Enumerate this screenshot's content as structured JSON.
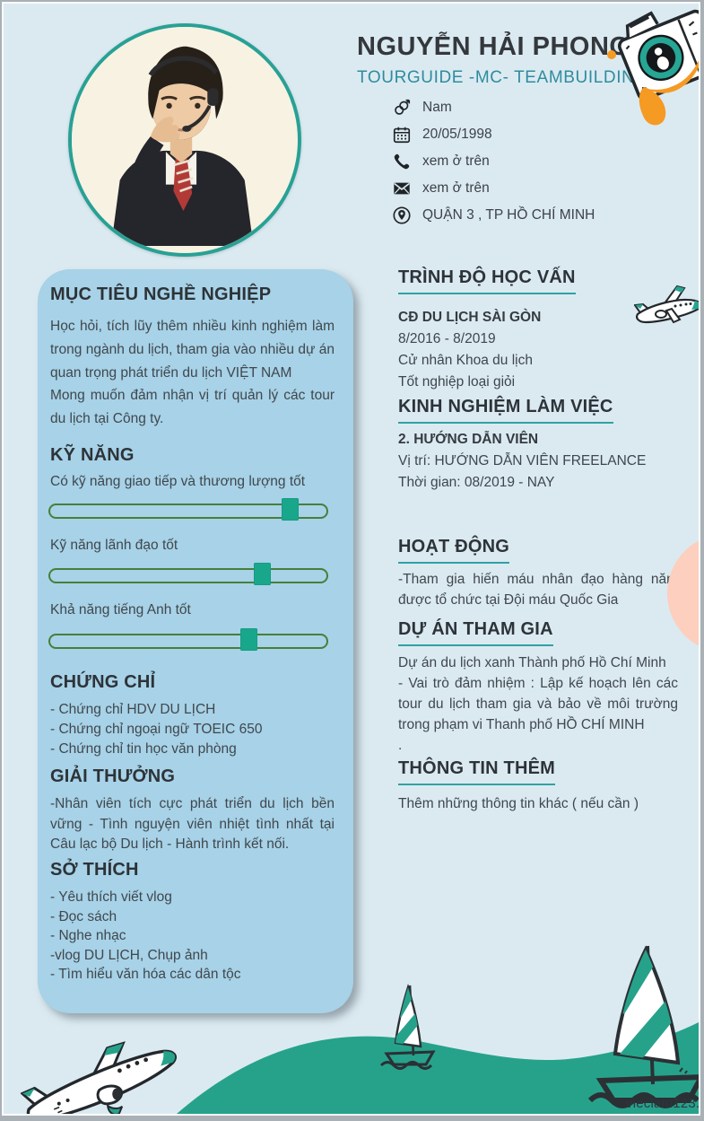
{
  "header": {
    "name": "NGUYỄN HẢI PHONG",
    "subtitle": "TOURGUIDE -MC- TEAMBUILDING",
    "info": [
      {
        "icon": "gender-icon",
        "text": "Nam"
      },
      {
        "icon": "calendar-icon",
        "text": "20/05/1998"
      },
      {
        "icon": "phone-icon",
        "text": "xem ở trên"
      },
      {
        "icon": "email-icon",
        "text": "xem ở trên"
      },
      {
        "icon": "location-icon",
        "text": "QUẬN 3 , TP HỒ CHÍ MINH"
      }
    ]
  },
  "left": {
    "objective": {
      "title": "MỤC TIÊU NGHỀ NGHIỆP",
      "p1": "Học hỏi, tích lũy thêm nhiều kinh nghiệm làm trong ngành du lịch, tham gia vào nhiều dự án quan trọng phát triển du lịch VIỆT NAM",
      "p2": "Mong muốn đảm nhận vị trí quản lý các tour du lịch tại Công ty."
    },
    "skills": {
      "title": "KỸ NĂNG",
      "items": [
        {
          "label": "Có kỹ năng giao tiếp và thương lượng tốt",
          "percent": 87
        },
        {
          "label": "Kỹ năng lãnh đạo tốt",
          "percent": 77
        },
        {
          "label": "Khả năng tiếng Anh tốt",
          "percent": 72
        }
      ]
    },
    "certificates": {
      "title": "CHỨNG CHỈ",
      "items": [
        "- Chứng chỉ HDV DU LỊCH",
        "- Chứng chỉ ngoại ngữ TOEIC 650",
        "- Chứng chỉ tin học văn phòng"
      ]
    },
    "awards": {
      "title": "GIẢI THƯỞNG",
      "text": "-Nhân viên tích cực phát triển du lịch bền vững - Tình nguyện viên nhiệt tình nhất tại Câu lạc bộ Du lịch - Hành trình kết nối."
    },
    "hobbies": {
      "title": "SỞ THÍCH",
      "items": [
        "- Yêu thích viết vlog",
        "- Đọc sách",
        "- Nghe nhạc",
        "-vlog DU LỊCH, Chụp ảnh",
        "- Tìm hiểu văn hóa các dân tộc"
      ]
    }
  },
  "right": {
    "education": {
      "title": "TRÌNH ĐỘ HỌC VẤN",
      "school": "CĐ DU LỊCH SÀI GÒN",
      "period": "8/2016 - 8/2019",
      "degree": "Cử nhân Khoa du lịch",
      "grade": "Tốt nghiệp loại giỏi"
    },
    "experience": {
      "title": "KINH NGHIỆM LÀM VIỆC",
      "job": "2. HƯỚNG DẪN VIÊN",
      "position": "Vị trí: HƯỚNG DẪN VIÊN FREELANCE",
      "time": "Thời gian: 08/2019 - NAY"
    },
    "activities": {
      "title": "HOẠT ĐỘNG",
      "text": "-Tham gia hiến máu nhân đạo hàng năm được tổ chức tại Đội máu Quốc Gia"
    },
    "projects": {
      "title": "DỰ ÁN THAM GIA",
      "p1": "Dự án du lịch xanh Thành phố Hồ Chí Minh",
      "p2": "- Vai trò đảm nhiệm : Lập kế hoạch lên các tour du lịch tham gia và bảo về môi trường trong phạm vi Thanh phố HỒ CHÍ MINH",
      "p3": "."
    },
    "more": {
      "title": "THÔNG TIN THÊM",
      "text": "Thêm những thông tin khác ( nếu cần )"
    }
  },
  "watermark": "vieclam123.v",
  "decorations": {
    "icons": [
      "camera-icon",
      "paint-splash",
      "jet-plane-icon",
      "airplane-icon",
      "sailboat-small-icon",
      "sailboat-big-icon",
      "sea-wave",
      "peach-blob",
      "profile-photo"
    ]
  },
  "colors": {
    "page_bg": "#dbeaf1",
    "card_bg": "#a7d2e7",
    "accent_teal": "#26a28e",
    "underline_teal": "#31a1a4",
    "subtitle_teal": "#2f8c9e",
    "heading_text": "#2d3339",
    "body_text": "#40474d",
    "slider_track_green": "#44803a",
    "slider_handle_teal": "#19a78c",
    "orange_splash": "#f59a23",
    "peach": "#fccfbe"
  }
}
